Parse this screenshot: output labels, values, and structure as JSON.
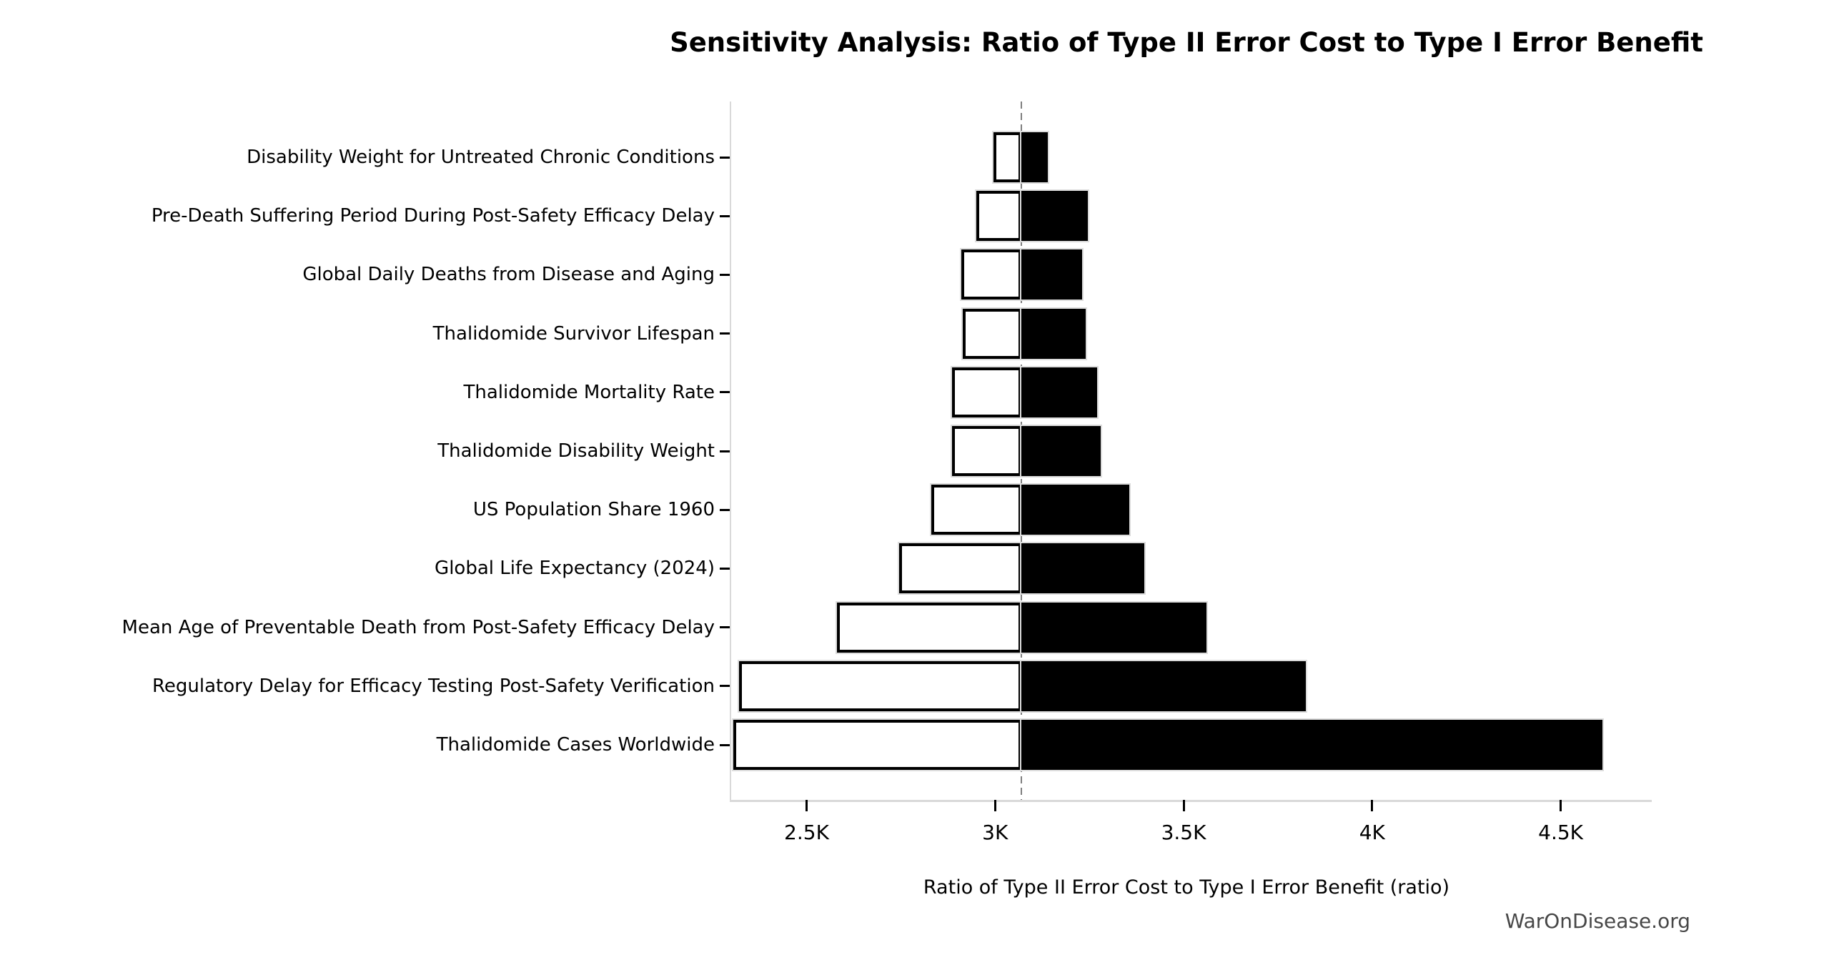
{
  "title": "Sensitivity Analysis: Ratio of Type II Error Cost to Type I Error Benefit",
  "watermark": "WarOnDisease.org",
  "chart_data": {
    "type": "bar",
    "subtype": "tornado-sensitivity-horizontal",
    "title": "Sensitivity Analysis: Ratio of Type II Error Cost to Type I Error Benefit",
    "xlabel": "Ratio of Type II Error Cost to Type I Error Benefit (ratio)",
    "ylabel": "",
    "base_value": 3070,
    "x_domain": [
      2300,
      4715
    ],
    "x_ticks": [
      {
        "value": 2500,
        "label": "2.5K"
      },
      {
        "value": 3000,
        "label": "3K"
      },
      {
        "value": 3500,
        "label": "3.5K"
      },
      {
        "value": 4000,
        "label": "4K"
      },
      {
        "value": 4500,
        "label": "4.5K"
      }
    ],
    "grid": false,
    "legend": "none",
    "baseline_style": "dashed-gray-vertical",
    "rows": [
      {
        "label": "Disability Weight for Untreated Chronic Conditions",
        "low": 2995,
        "high": 3140
      },
      {
        "label": "Pre-Death Suffering Period During Post-Safety Efficacy Delay",
        "low": 2950,
        "high": 3245
      },
      {
        "label": "Global Daily Deaths from Disease and Aging",
        "low": 2910,
        "high": 3230
      },
      {
        "label": "Thalidomide Survivor Lifespan",
        "low": 2915,
        "high": 3240
      },
      {
        "label": "Thalidomide Mortality Rate",
        "low": 2885,
        "high": 3270
      },
      {
        "label": "Thalidomide Disability Weight",
        "low": 2885,
        "high": 3280
      },
      {
        "label": "US Population Share 1960",
        "low": 2830,
        "high": 3355
      },
      {
        "label": "Global Life Expectancy (2024)",
        "low": 2745,
        "high": 3395
      },
      {
        "label": "Mean Age of Preventable Death from Post-Safety Efficacy Delay",
        "low": 2580,
        "high": 3560
      },
      {
        "label": "Regulatory Delay for Efficacy Testing Post-Safety Verification",
        "low": 2320,
        "high": 3825
      },
      {
        "label": "Thalidomide Cases Worldwide",
        "low": 2305,
        "high": 4610
      }
    ],
    "colors": {
      "low_fill": "#ffffff",
      "low_edge": "#000000",
      "high_fill": "#000000",
      "bar_outline": "#dcdcdc",
      "baseline": "#7f7f7f",
      "spine": "#d9d9d9",
      "watermark_text": "#474747"
    }
  }
}
